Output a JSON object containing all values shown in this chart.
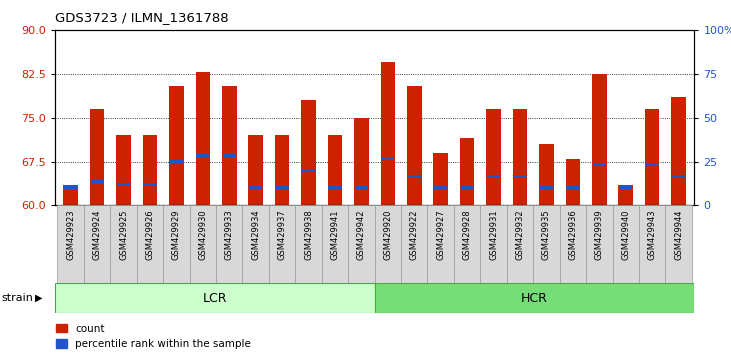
{
  "title": "GDS3723 / ILMN_1361788",
  "samples": [
    "GSM429923",
    "GSM429924",
    "GSM429925",
    "GSM429926",
    "GSM429929",
    "GSM429930",
    "GSM429933",
    "GSM429934",
    "GSM429937",
    "GSM429938",
    "GSM429941",
    "GSM429942",
    "GSM429920",
    "GSM429922",
    "GSM429927",
    "GSM429928",
    "GSM429931",
    "GSM429932",
    "GSM429935",
    "GSM429936",
    "GSM429939",
    "GSM429940",
    "GSM429943",
    "GSM429944"
  ],
  "count_values": [
    63.5,
    76.5,
    72.0,
    72.0,
    80.5,
    82.8,
    80.5,
    72.0,
    72.0,
    78.0,
    72.0,
    75.0,
    84.5,
    80.5,
    69.0,
    71.5,
    76.5,
    76.5,
    70.5,
    68.0,
    82.5,
    63.5,
    76.5,
    78.5
  ],
  "percentile_values": [
    63.0,
    64.0,
    63.5,
    63.5,
    67.5,
    68.5,
    68.5,
    63.0,
    63.0,
    66.0,
    63.0,
    63.0,
    68.0,
    65.0,
    63.0,
    63.0,
    65.0,
    65.0,
    63.0,
    63.0,
    67.0,
    63.0,
    67.0,
    65.0
  ],
  "group_labels": [
    "LCR",
    "HCR"
  ],
  "group_sizes": [
    12,
    12
  ],
  "ylim_left": [
    60,
    90
  ],
  "ylim_right": [
    0,
    100
  ],
  "yticks_left": [
    60,
    67.5,
    75,
    82.5,
    90
  ],
  "yticks_right": [
    0,
    25,
    50,
    75,
    100
  ],
  "bar_color": "#cc2200",
  "percentile_color": "#2255cc",
  "bar_width": 0.55,
  "background_color": "#ffffff",
  "legend_count": "count",
  "legend_percentile": "percentile rank within the sample",
  "strain_label": "strain",
  "lcr_color": "#ccffcc",
  "hcr_color": "#77dd77",
  "tick_label_color_left": "#cc2200",
  "tick_label_color_right": "#2255cc",
  "box_color": "#d8d8d8",
  "box_edge_color": "#999999"
}
